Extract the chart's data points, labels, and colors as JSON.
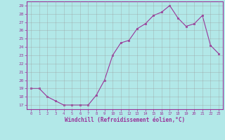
{
  "x": [
    0,
    1,
    2,
    3,
    4,
    5,
    6,
    7,
    8,
    9,
    10,
    11,
    12,
    13,
    14,
    15,
    16,
    17,
    18,
    19,
    20,
    21,
    22,
    23
  ],
  "y": [
    19.0,
    19.0,
    18.0,
    17.5,
    17.0,
    17.0,
    17.0,
    17.0,
    18.2,
    20.0,
    23.0,
    24.5,
    24.8,
    26.2,
    26.8,
    27.8,
    28.2,
    29.0,
    27.5,
    26.5,
    26.8,
    27.8,
    24.2,
    23.2
  ],
  "line_color": "#993399",
  "marker_color": "#993399",
  "bg_color": "#b2e8e8",
  "grid_color": "#999999",
  "axis_color": "#993399",
  "border_color": "#993399",
  "xlabel": "Windchill (Refroidissement éolien,°C)",
  "ylabel_ticks": [
    17,
    18,
    19,
    20,
    21,
    22,
    23,
    24,
    25,
    26,
    27,
    28,
    29
  ],
  "ylim": [
    16.5,
    29.5
  ],
  "xlim": [
    -0.5,
    23.5
  ],
  "xticks": [
    0,
    1,
    2,
    3,
    4,
    5,
    6,
    7,
    8,
    9,
    10,
    11,
    12,
    13,
    14,
    15,
    16,
    17,
    18,
    19,
    20,
    21,
    22,
    23
  ]
}
